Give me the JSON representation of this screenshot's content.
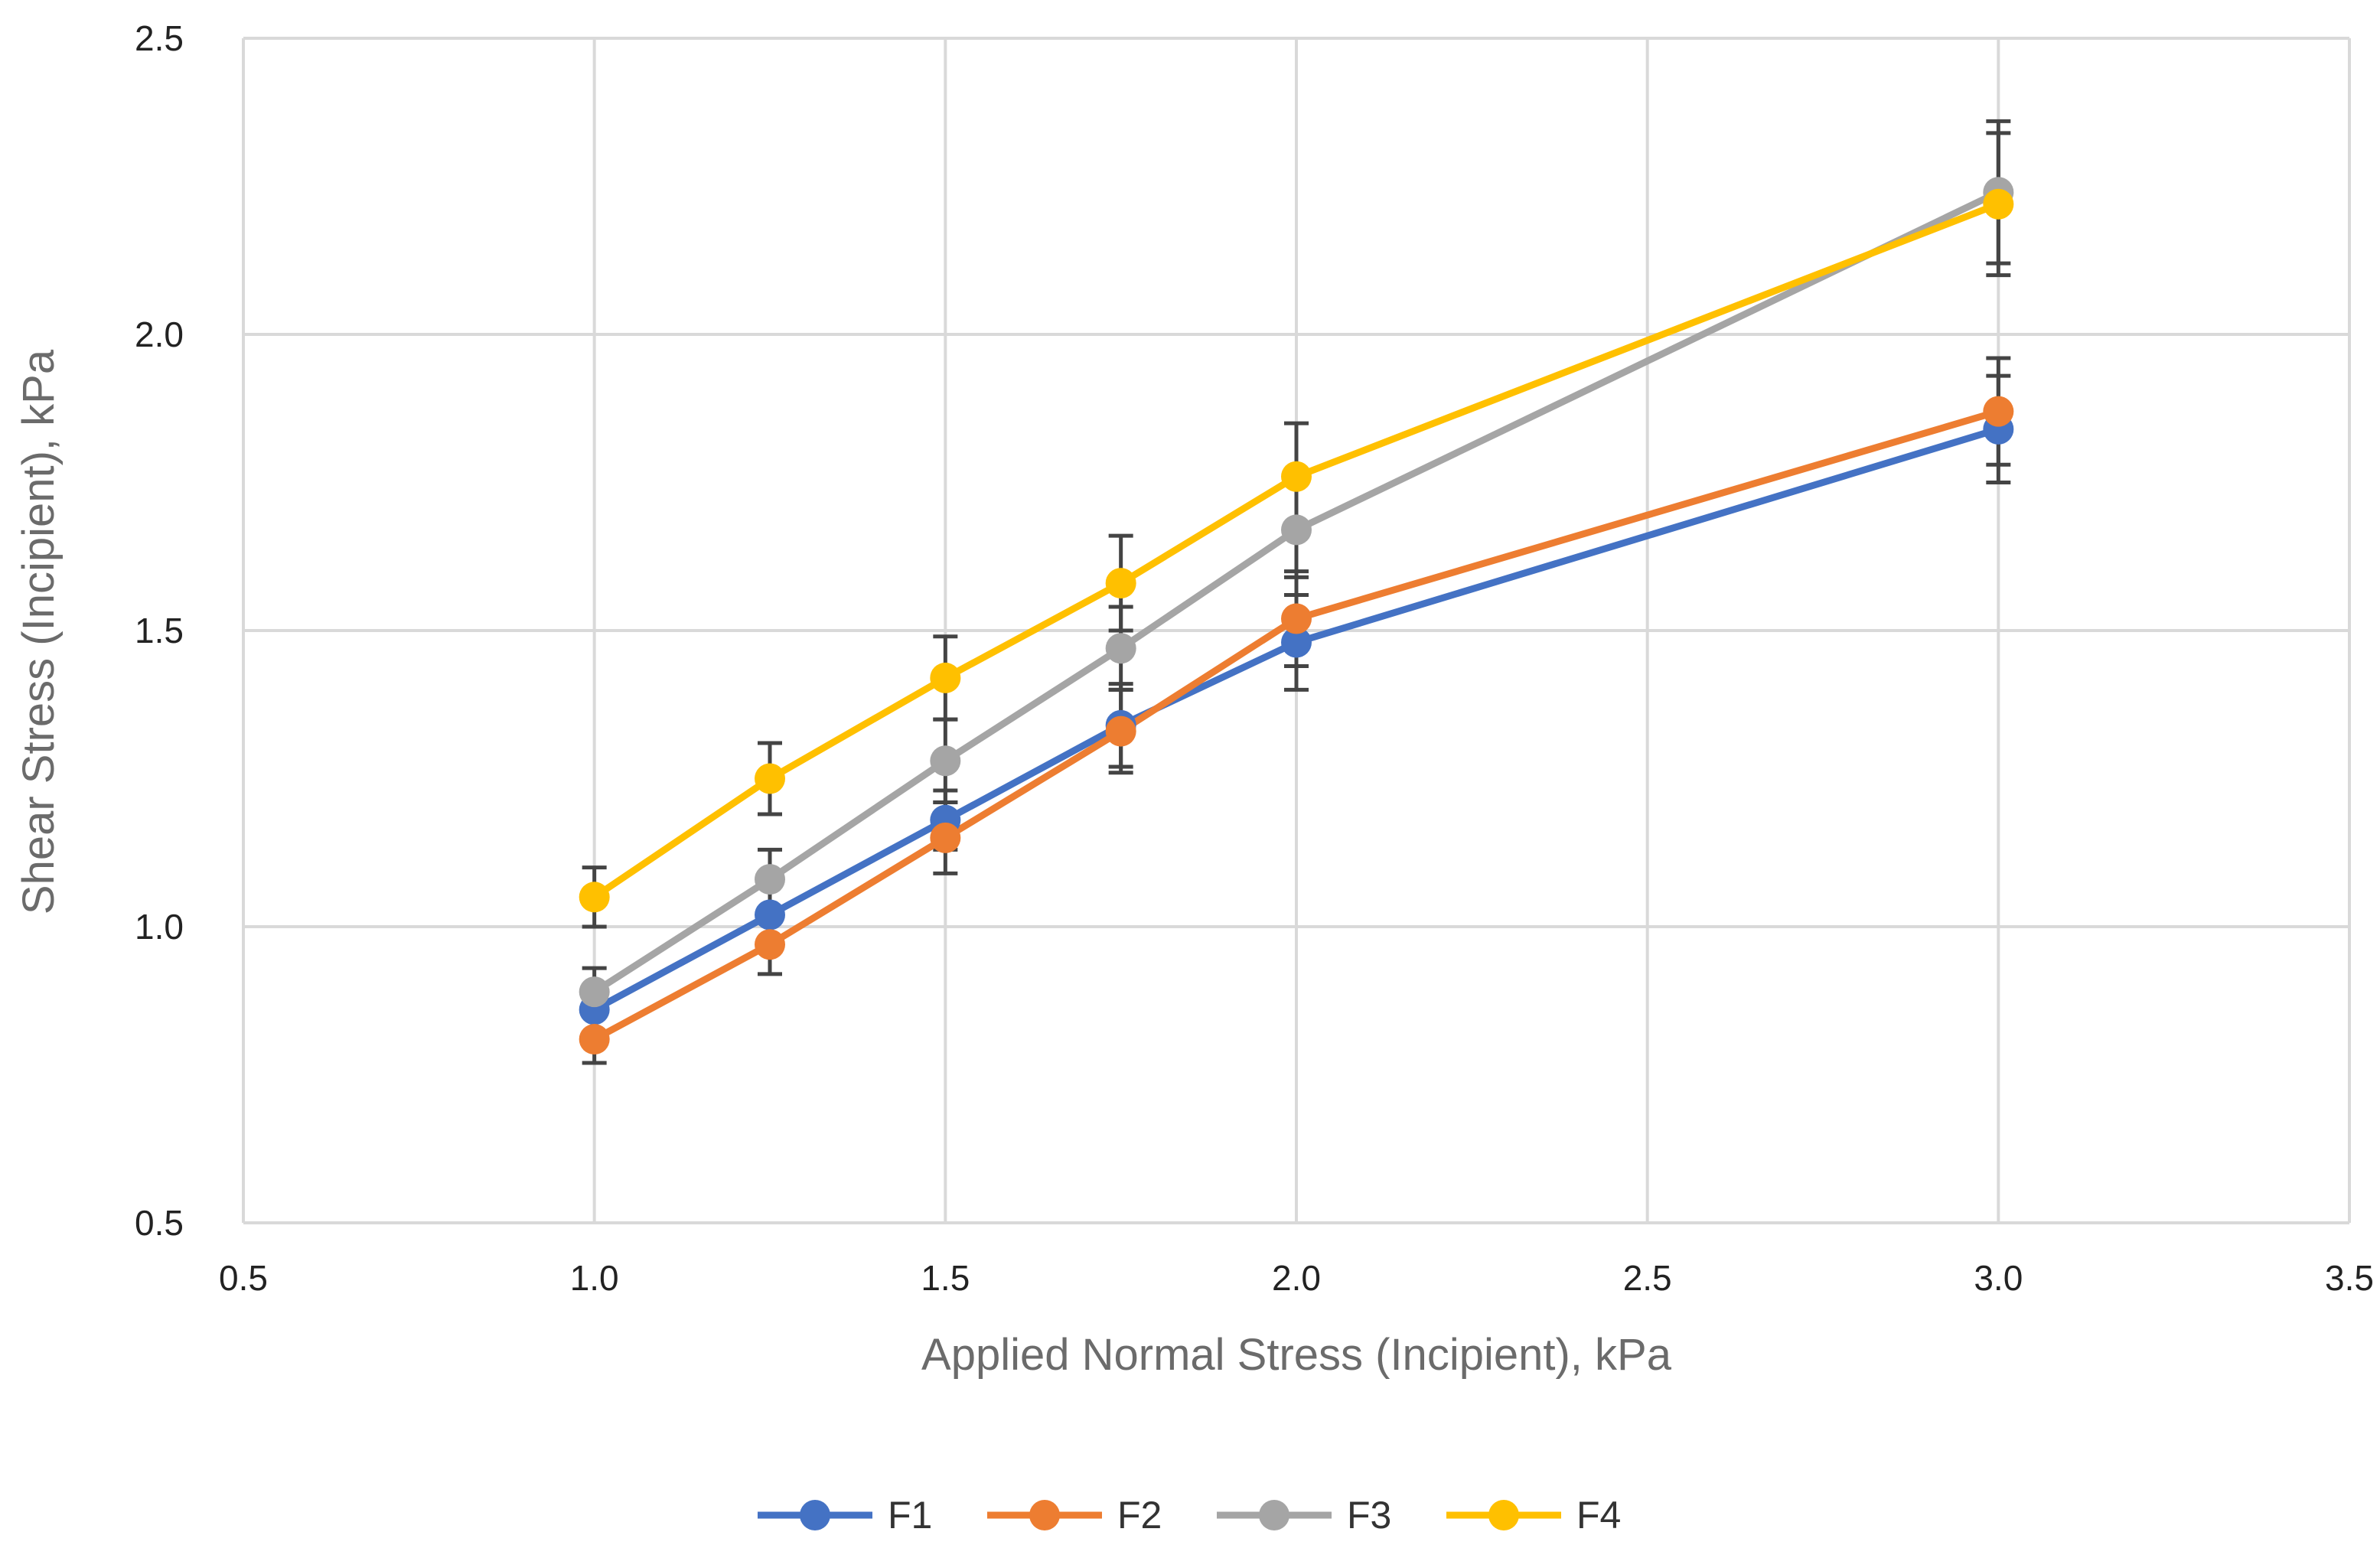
{
  "chart_data": {
    "type": "line",
    "title": "",
    "xlabel": "Applied Normal Stress (Incipient), kPa",
    "ylabel": "Shear Stress (Incipient), kPa",
    "xlim": [
      0.5,
      3.5
    ],
    "ylim": [
      0.5,
      2.5
    ],
    "xticks": [
      0.5,
      1.0,
      1.5,
      2.0,
      2.5,
      3.0,
      3.5
    ],
    "yticks": [
      0.5,
      1.0,
      1.5,
      2.0,
      2.5
    ],
    "xtick_labels": [
      "0.5",
      "1.0",
      "1.5",
      "2.0",
      "2.5",
      "3.0",
      "3.5"
    ],
    "ytick_labels": [
      "0.5",
      "1.0",
      "1.5",
      "2.0",
      "2.5"
    ],
    "grid": true,
    "legend_position": "bottom",
    "x": [
      1.0,
      1.25,
      1.5,
      1.75,
      2.0,
      3.0
    ],
    "series": [
      {
        "name": "F1",
        "color": "#4472C4",
        "values": [
          0.86,
          1.02,
          1.18,
          1.34,
          1.48,
          1.84
        ],
        "errors": [
          0.04,
          0.05,
          0.05,
          0.07,
          0.08,
          0.09
        ]
      },
      {
        "name": "F2",
        "color": "#ED7D31",
        "values": [
          0.81,
          0.97,
          1.15,
          1.33,
          1.52,
          1.87
        ],
        "errors": [
          0.04,
          0.05,
          0.06,
          0.07,
          0.08,
          0.09
        ]
      },
      {
        "name": "F3",
        "color": "#A5A5A5",
        "values": [
          0.89,
          1.08,
          1.28,
          1.47,
          1.67,
          2.24
        ],
        "errors": [
          0.04,
          0.05,
          0.07,
          0.07,
          0.08,
          0.12
        ]
      },
      {
        "name": "F4",
        "color": "#FFC000",
        "values": [
          1.05,
          1.25,
          1.42,
          1.58,
          1.76,
          2.22
        ],
        "errors": [
          0.05,
          0.06,
          0.07,
          0.08,
          0.09,
          0.12
        ]
      }
    ]
  }
}
